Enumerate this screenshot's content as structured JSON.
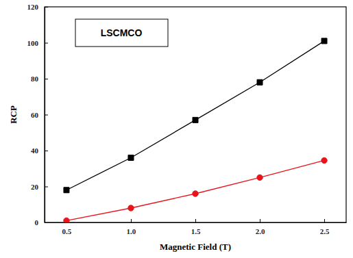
{
  "chart_data": {
    "type": "line",
    "annotations": [
      "LSCMCO"
    ],
    "x_label": "Magnetic Field (T)",
    "y_label": "RCP",
    "x": [
      0.5,
      1.0,
      1.5,
      2.0,
      2.5
    ],
    "series": [
      {
        "color": "#000000",
        "marker": "square",
        "values": [
          18,
          36,
          57,
          78,
          101
        ]
      },
      {
        "color": "#e8141c",
        "marker": "circle",
        "values": [
          1,
          8,
          16,
          25,
          34.5
        ]
      }
    ],
    "xlim": [
      0.33,
      2.67
    ],
    "ylim": [
      0,
      120
    ],
    "xticks": [
      {
        "value": 0.5,
        "label": "0.5"
      },
      {
        "value": 1,
        "label": "1.0"
      },
      {
        "value": 1.5,
        "label": "1.5"
      },
      {
        "value": 2,
        "label": "2.0"
      },
      {
        "value": 2.5,
        "label": "2.5"
      }
    ],
    "yticks": [
      0,
      20,
      40,
      60,
      80,
      100,
      120
    ],
    "grid": false
  }
}
